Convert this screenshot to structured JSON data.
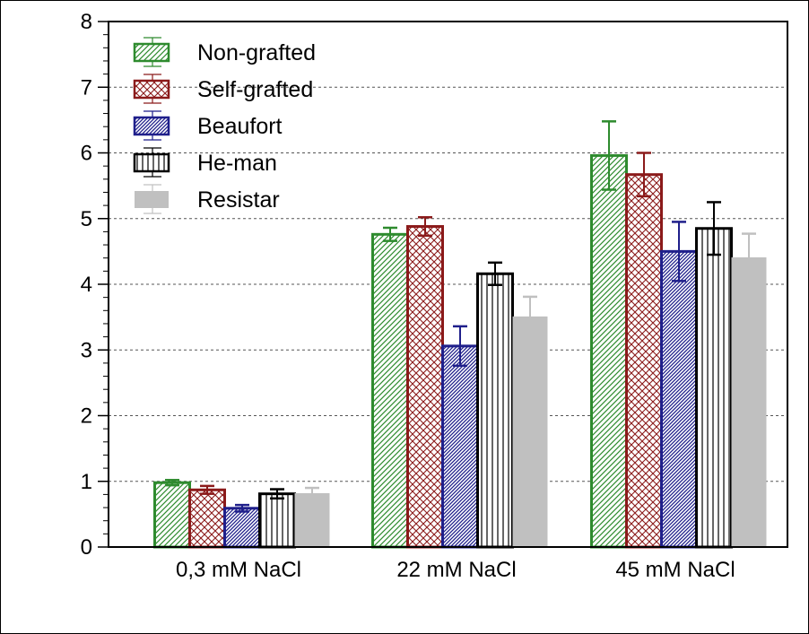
{
  "chart_data": {
    "type": "bar",
    "title": "",
    "xlabel": "",
    "ylabel": "",
    "ylim": [
      0,
      8
    ],
    "yticks": [
      "0",
      "1",
      "2",
      "3",
      "4",
      "5",
      "6",
      "7",
      "8"
    ],
    "grid": "horizontal-dashed",
    "legend_position": "top-left",
    "categories": [
      "0,3 mM NaCl",
      "22 mM NaCl",
      "45 mM NaCl"
    ],
    "series": [
      {
        "name": "Non-grafted",
        "pattern": "diagonal-hatch",
        "color": "#2e8b2e",
        "values": [
          0.98,
          4.76,
          5.96
        ],
        "errors": [
          0.04,
          0.1,
          0.52
        ]
      },
      {
        "name": "Self-grafted",
        "pattern": "cross-hatch",
        "color": "#8b1a1a",
        "values": [
          0.87,
          4.88,
          5.67
        ],
        "errors": [
          0.06,
          0.14,
          0.33
        ]
      },
      {
        "name": "Beaufort",
        "pattern": "dense-diagonal-hatch",
        "color": "#1f1f8b",
        "values": [
          0.59,
          3.06,
          4.5
        ],
        "errors": [
          0.05,
          0.3,
          0.45
        ]
      },
      {
        "name": "He-man",
        "pattern": "vertical-lines",
        "color": "#000000",
        "values": [
          0.81,
          4.16,
          4.85
        ],
        "errors": [
          0.07,
          0.17,
          0.4
        ]
      },
      {
        "name": "Resistar",
        "pattern": "solid",
        "color": "#c0c0c0",
        "values": [
          0.82,
          3.51,
          4.41
        ],
        "errors": [
          0.08,
          0.3,
          0.36
        ]
      }
    ]
  }
}
